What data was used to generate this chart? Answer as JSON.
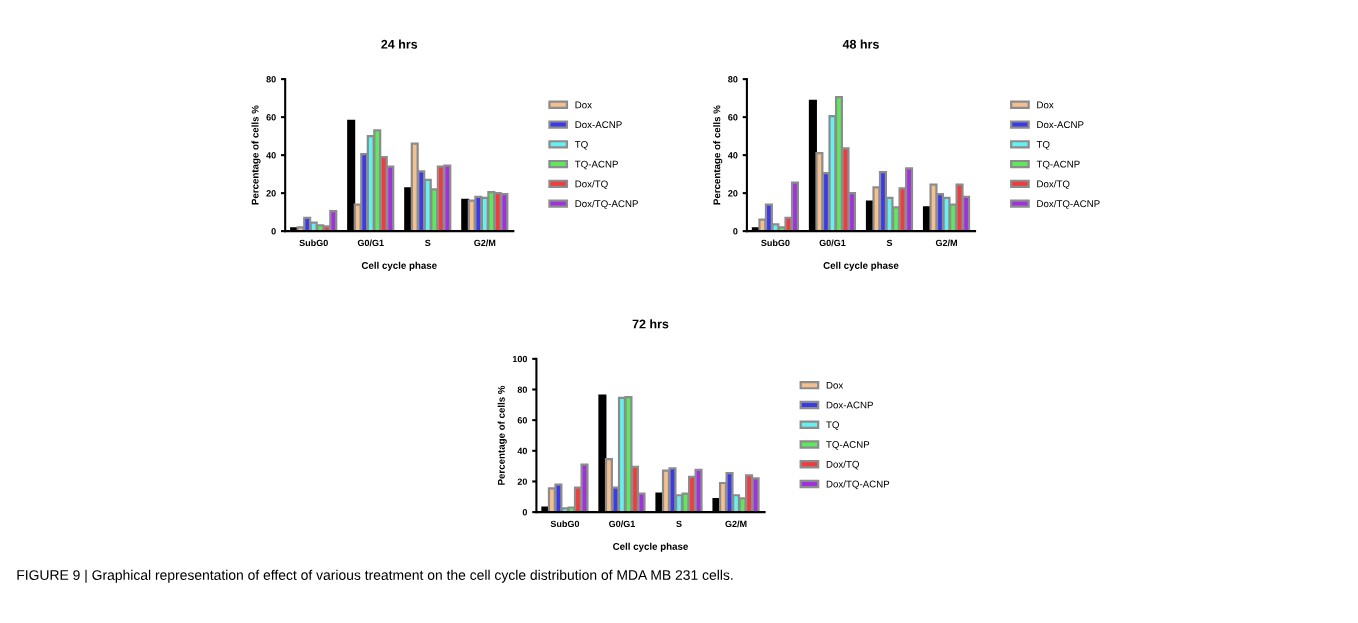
{
  "chart_data": [
    {
      "type": "bar",
      "title": "24 hrs",
      "xlabel": "Cell cycle phase",
      "ylabel": "Percentage of cells %",
      "categories": [
        "SubG0",
        "G0/G1",
        "S",
        "G2/M"
      ],
      "ylim": [
        0,
        80
      ],
      "yticks": [
        0,
        20,
        40,
        60,
        80
      ],
      "legend": "right",
      "annotations": [
        "FIGURE 9 | Graphical representation of effect of various treatment on the cell cycle distribution of MDA MB 231 cells."
      ],
      "series": [
        {
          "color": "#000000",
          "values": [
            1.5,
            58,
            22.5,
            16.5
          ]
        },
        {
          "name": "Dox",
          "color": "#f5c08f",
          "values": [
            2,
            14,
            46,
            16
          ]
        },
        {
          "name": "Dox-ACNP",
          "color": "#3a3ae8",
          "values": [
            7,
            40.5,
            31.5,
            18
          ]
        },
        {
          "name": "TQ",
          "color": "#66f0f0",
          "values": [
            4.5,
            50,
            27,
            17.5
          ]
        },
        {
          "name": "TQ-ACNP",
          "color": "#5ee85e",
          "values": [
            3,
            53,
            22,
            20.5
          ]
        },
        {
          "name": "Dox/TQ",
          "color": "#f03c3c",
          "values": [
            2.5,
            39,
            34,
            20
          ]
        },
        {
          "name": "Dox/TQ-ACNP",
          "color": "#a030e0",
          "values": [
            10.5,
            34,
            34.5,
            19.5
          ]
        }
      ]
    },
    {
      "type": "bar",
      "title": "48 hrs",
      "xlabel": "Cell cycle phase",
      "ylabel": "Percentage of cells %",
      "categories": [
        "SubG0",
        "G0/G1",
        "S",
        "G2/M"
      ],
      "ylim": [
        0,
        80
      ],
      "yticks": [
        0,
        20,
        40,
        60,
        80
      ],
      "legend": "right",
      "series": [
        {
          "color": "#000000",
          "values": [
            1.5,
            68.5,
            15.5,
            12.5
          ]
        },
        {
          "name": "Dox",
          "color": "#f5c08f",
          "values": [
            6,
            41,
            23,
            24.5
          ]
        },
        {
          "name": "Dox-ACNP",
          "color": "#3a3ae8",
          "values": [
            14,
            30.5,
            31,
            19.5
          ]
        },
        {
          "name": "TQ",
          "color": "#66f0f0",
          "values": [
            3.5,
            60.5,
            17.5,
            17.5
          ]
        },
        {
          "name": "TQ-ACNP",
          "color": "#5ee85e",
          "values": [
            2,
            70.5,
            12.5,
            14
          ]
        },
        {
          "name": "Dox/TQ",
          "color": "#f03c3c",
          "values": [
            7,
            43.5,
            22.5,
            24.5
          ]
        },
        {
          "name": "Dox/TQ-ACNP",
          "color": "#a030e0",
          "values": [
            25.5,
            20,
            33,
            18
          ]
        }
      ]
    },
    {
      "type": "bar",
      "title": "72 hrs",
      "xlabel": "Cell cycle phase",
      "ylabel": "Percentage of cells %",
      "categories": [
        "SubG0",
        "G0/G1",
        "S",
        "G2/M"
      ],
      "ylim": [
        0,
        100
      ],
      "yticks": [
        0,
        20,
        40,
        60,
        80,
        100
      ],
      "legend": "right",
      "series": [
        {
          "color": "#000000",
          "values": [
            3,
            76,
            12,
            8.5
          ]
        },
        {
          "name": "Dox",
          "color": "#f5c08f",
          "values": [
            15.5,
            34.5,
            27,
            19
          ]
        },
        {
          "name": "Dox-ACNP",
          "color": "#3a3ae8",
          "values": [
            18,
            16,
            28.5,
            25.5
          ]
        },
        {
          "name": "TQ",
          "color": "#66f0f0",
          "values": [
            2.5,
            74.5,
            11,
            11
          ]
        },
        {
          "name": "TQ-ACNP",
          "color": "#5ee85e",
          "values": [
            3,
            75,
            12,
            9
          ]
        },
        {
          "name": "Dox/TQ",
          "color": "#f03c3c",
          "values": [
            16,
            29.5,
            23,
            24
          ]
        },
        {
          "name": "Dox/TQ-ACNP",
          "color": "#a030e0",
          "values": [
            31,
            12,
            27.5,
            22
          ]
        }
      ]
    }
  ]
}
